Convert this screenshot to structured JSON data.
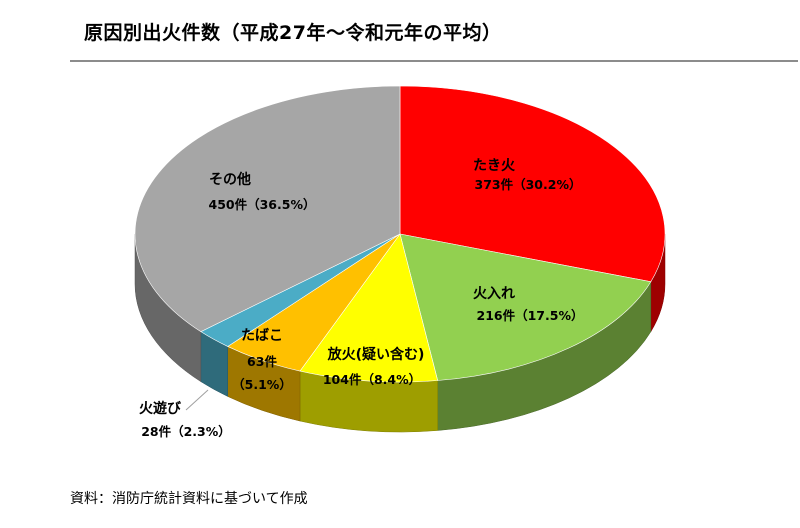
{
  "title": "原因別出火件数（平成27年～令和元年の平均）",
  "source": "資料：消防庁統計資料に基づいて作成",
  "chart_data": {
    "type": "pie",
    "title": "原因別出火件数（平成27年～令和元年の平均）",
    "unit": "件",
    "slices": [
      {
        "name": "たき火",
        "value": 373,
        "percent": 30.2,
        "value_label": "373件（30.2%）",
        "color": "#ff0000"
      },
      {
        "name": "火入れ",
        "value": 216,
        "percent": 17.5,
        "value_label": "216件（17.5%）",
        "color": "#92d050"
      },
      {
        "name": "放火(疑い含む)",
        "value": 104,
        "percent": 8.4,
        "value_label": "104件（8.4%）",
        "color": "#ffff00"
      },
      {
        "name": "たばこ",
        "value": 63,
        "percent": 5.1,
        "value_label_1": "63件",
        "value_label_2": "（5.1%）",
        "color": "#ffc000"
      },
      {
        "name": "火遊び",
        "value": 28,
        "percent": 2.3,
        "value_label": "28件（2.3%）",
        "color": "#4bacc6"
      },
      {
        "name": "その他",
        "value": 450,
        "percent": 36.5,
        "value_label": "450件（36.5%）",
        "color": "#a6a6a6"
      }
    ]
  }
}
